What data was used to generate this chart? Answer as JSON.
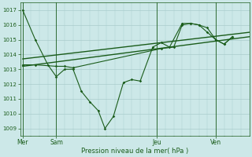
{
  "background_color": "#cce8e8",
  "grid_color": "#aacccc",
  "line_color": "#1a5c1a",
  "ylim": [
    1008.5,
    1017.5
  ],
  "yticks": [
    1009,
    1010,
    1011,
    1012,
    1013,
    1014,
    1015,
    1016,
    1017
  ],
  "xlabel": "Pression niveau de la mer( hPa )",
  "day_labels": [
    "Mer",
    "Sam",
    "Jeu",
    "Ven"
  ],
  "day_positions": [
    0,
    4,
    16,
    23
  ],
  "xlim": [
    -0.3,
    27
  ],
  "series1_x": [
    0,
    1.5,
    3,
    4,
    5,
    6,
    7,
    8,
    9,
    9.8,
    10.8,
    12,
    13,
    14,
    15.5,
    16.5,
    17.5,
    19,
    20,
    21,
    22,
    23,
    24,
    25
  ],
  "series1_y": [
    1017.0,
    1015.0,
    1013.3,
    1012.5,
    1013.0,
    1013.0,
    1011.5,
    1010.8,
    1010.2,
    1009.0,
    1009.8,
    1012.1,
    1012.3,
    1012.2,
    1014.5,
    1014.8,
    1014.5,
    1016.1,
    1016.1,
    1016.0,
    1015.8,
    1015.0,
    1014.7,
    1015.2
  ],
  "series2_x": [
    0,
    1.5,
    4,
    5,
    6,
    16.5,
    18,
    19,
    20,
    21,
    22,
    23,
    24,
    25
  ],
  "series2_y": [
    1013.3,
    1013.3,
    1013.2,
    1013.2,
    1013.1,
    1014.4,
    1014.5,
    1016.0,
    1016.1,
    1016.0,
    1015.5,
    1015.0,
    1014.7,
    1015.2
  ],
  "trend1_x": [
    0,
    27
  ],
  "trend1_y": [
    1013.2,
    1015.2
  ],
  "trend2_x": [
    0,
    27
  ],
  "trend2_y": [
    1013.7,
    1015.5
  ]
}
